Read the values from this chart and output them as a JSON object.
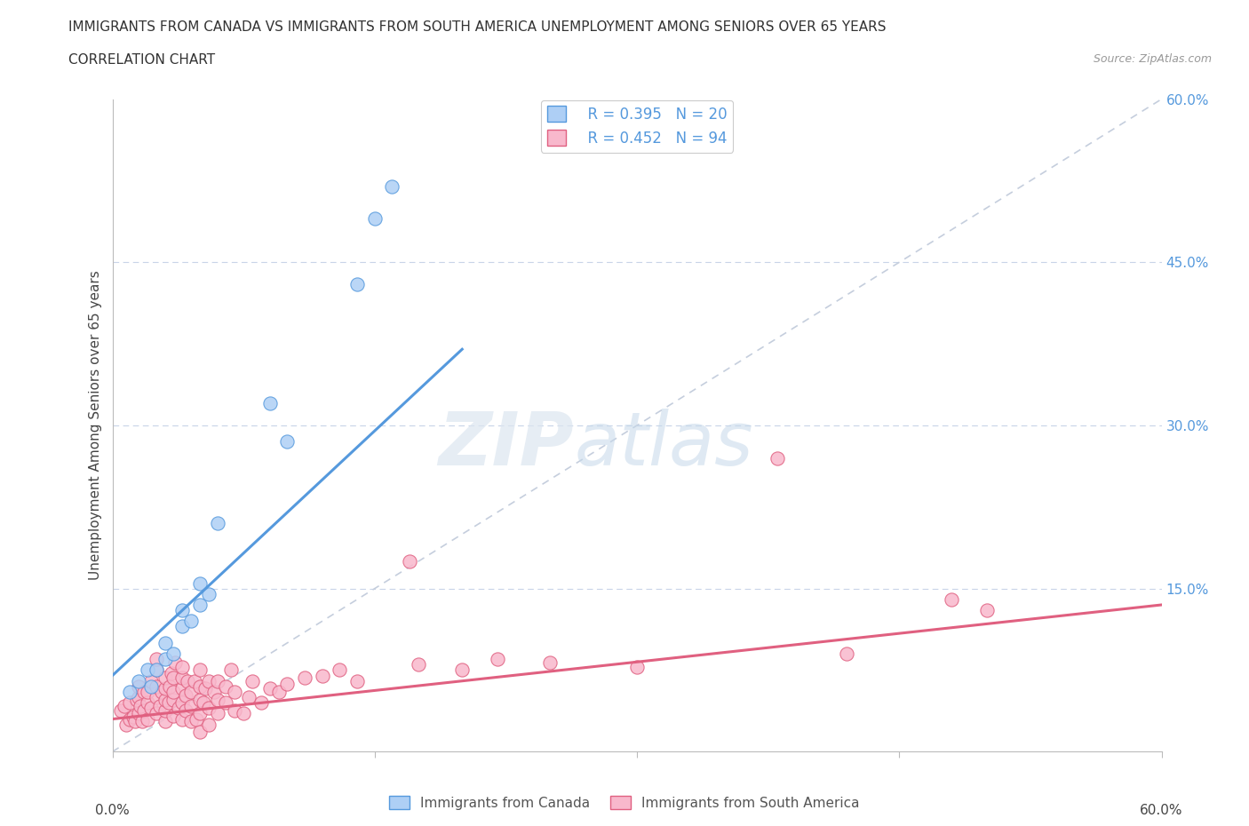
{
  "title_line1": "IMMIGRANTS FROM CANADA VS IMMIGRANTS FROM SOUTH AMERICA UNEMPLOYMENT AMONG SENIORS OVER 65 YEARS",
  "title_line2": "CORRELATION CHART",
  "source": "Source: ZipAtlas.com",
  "ylabel": "Unemployment Among Seniors over 65 years",
  "xlim": [
    0,
    0.6
  ],
  "ylim": [
    0,
    0.6
  ],
  "yticks": [
    0.0,
    0.15,
    0.3,
    0.45,
    0.6
  ],
  "ytick_labels": [
    "",
    "15.0%",
    "30.0%",
    "45.0%",
    "60.0%"
  ],
  "canada_R": "0.395",
  "canada_N": "20",
  "sa_R": "0.452",
  "sa_N": "94",
  "canada_color": "#aecff5",
  "canada_line_color": "#5599dd",
  "sa_color": "#f8b8cc",
  "sa_line_color": "#e06080",
  "diagonal_color": "#c5cedd",
  "canada_line_x": [
    0.0,
    0.2
  ],
  "canada_line_y": [
    0.07,
    0.37
  ],
  "sa_line_x": [
    0.0,
    0.6
  ],
  "sa_line_y": [
    0.03,
    0.135
  ],
  "canada_scatter": [
    [
      0.01,
      0.055
    ],
    [
      0.015,
      0.065
    ],
    [
      0.02,
      0.075
    ],
    [
      0.022,
      0.06
    ],
    [
      0.025,
      0.075
    ],
    [
      0.03,
      0.085
    ],
    [
      0.03,
      0.1
    ],
    [
      0.035,
      0.09
    ],
    [
      0.04,
      0.115
    ],
    [
      0.04,
      0.13
    ],
    [
      0.045,
      0.12
    ],
    [
      0.05,
      0.135
    ],
    [
      0.05,
      0.155
    ],
    [
      0.055,
      0.145
    ],
    [
      0.06,
      0.21
    ],
    [
      0.09,
      0.32
    ],
    [
      0.1,
      0.285
    ],
    [
      0.14,
      0.43
    ],
    [
      0.15,
      0.49
    ],
    [
      0.16,
      0.52
    ]
  ],
  "sa_scatter": [
    [
      0.005,
      0.038
    ],
    [
      0.007,
      0.042
    ],
    [
      0.008,
      0.025
    ],
    [
      0.01,
      0.03
    ],
    [
      0.01,
      0.045
    ],
    [
      0.012,
      0.032
    ],
    [
      0.013,
      0.028
    ],
    [
      0.014,
      0.048
    ],
    [
      0.015,
      0.035
    ],
    [
      0.015,
      0.05
    ],
    [
      0.015,
      0.06
    ],
    [
      0.016,
      0.042
    ],
    [
      0.017,
      0.028
    ],
    [
      0.018,
      0.038
    ],
    [
      0.018,
      0.055
    ],
    [
      0.02,
      0.03
    ],
    [
      0.02,
      0.045
    ],
    [
      0.02,
      0.055
    ],
    [
      0.022,
      0.04
    ],
    [
      0.022,
      0.065
    ],
    [
      0.025,
      0.035
    ],
    [
      0.025,
      0.05
    ],
    [
      0.025,
      0.06
    ],
    [
      0.025,
      0.075
    ],
    [
      0.025,
      0.085
    ],
    [
      0.027,
      0.042
    ],
    [
      0.028,
      0.055
    ],
    [
      0.03,
      0.028
    ],
    [
      0.03,
      0.038
    ],
    [
      0.03,
      0.048
    ],
    [
      0.03,
      0.058
    ],
    [
      0.03,
      0.068
    ],
    [
      0.032,
      0.045
    ],
    [
      0.033,
      0.06
    ],
    [
      0.034,
      0.072
    ],
    [
      0.035,
      0.033
    ],
    [
      0.035,
      0.048
    ],
    [
      0.035,
      0.055
    ],
    [
      0.035,
      0.068
    ],
    [
      0.036,
      0.082
    ],
    [
      0.038,
      0.04
    ],
    [
      0.04,
      0.03
    ],
    [
      0.04,
      0.045
    ],
    [
      0.04,
      0.058
    ],
    [
      0.04,
      0.068
    ],
    [
      0.04,
      0.078
    ],
    [
      0.042,
      0.038
    ],
    [
      0.042,
      0.052
    ],
    [
      0.043,
      0.065
    ],
    [
      0.045,
      0.028
    ],
    [
      0.045,
      0.042
    ],
    [
      0.045,
      0.055
    ],
    [
      0.047,
      0.065
    ],
    [
      0.048,
      0.03
    ],
    [
      0.05,
      0.018
    ],
    [
      0.05,
      0.035
    ],
    [
      0.05,
      0.048
    ],
    [
      0.05,
      0.06
    ],
    [
      0.05,
      0.075
    ],
    [
      0.052,
      0.045
    ],
    [
      0.053,
      0.058
    ],
    [
      0.055,
      0.025
    ],
    [
      0.055,
      0.04
    ],
    [
      0.055,
      0.065
    ],
    [
      0.058,
      0.055
    ],
    [
      0.06,
      0.035
    ],
    [
      0.06,
      0.048
    ],
    [
      0.06,
      0.065
    ],
    [
      0.065,
      0.045
    ],
    [
      0.065,
      0.06
    ],
    [
      0.068,
      0.075
    ],
    [
      0.07,
      0.038
    ],
    [
      0.07,
      0.055
    ],
    [
      0.075,
      0.035
    ],
    [
      0.078,
      0.05
    ],
    [
      0.08,
      0.065
    ],
    [
      0.085,
      0.045
    ],
    [
      0.09,
      0.058
    ],
    [
      0.095,
      0.055
    ],
    [
      0.1,
      0.062
    ],
    [
      0.11,
      0.068
    ],
    [
      0.12,
      0.07
    ],
    [
      0.13,
      0.075
    ],
    [
      0.14,
      0.065
    ],
    [
      0.17,
      0.175
    ],
    [
      0.175,
      0.08
    ],
    [
      0.2,
      0.075
    ],
    [
      0.22,
      0.085
    ],
    [
      0.25,
      0.082
    ],
    [
      0.3,
      0.078
    ],
    [
      0.38,
      0.27
    ],
    [
      0.42,
      0.09
    ],
    [
      0.48,
      0.14
    ],
    [
      0.5,
      0.13
    ]
  ]
}
